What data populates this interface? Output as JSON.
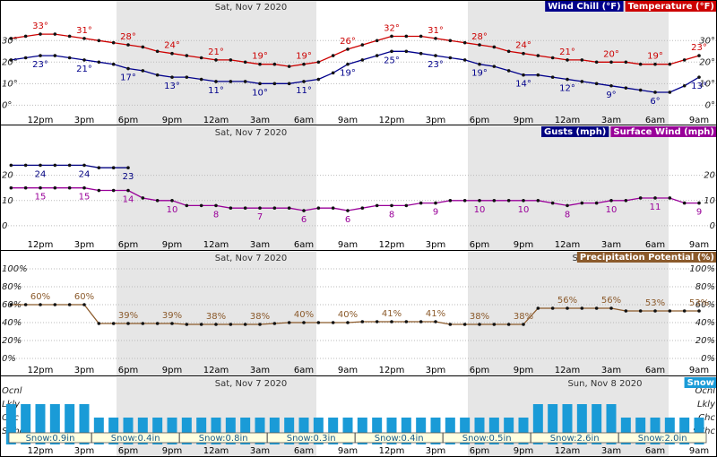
{
  "chart_data": [
    {
      "type": "line",
      "headers": [
        "Sat, Nov 7 2020"
      ],
      "categories": [
        null,
        null,
        "12pm",
        null,
        null,
        "3pm",
        null,
        null,
        "6pm",
        null,
        null,
        "9pm",
        null,
        null,
        "12am",
        null,
        null,
        "3am",
        null,
        null,
        "6am",
        null,
        null,
        "9am",
        null,
        null,
        "12pm",
        null,
        null,
        "3pm",
        null,
        null,
        "6pm",
        null,
        null,
        "9pm",
        null,
        null,
        "12am",
        null,
        null,
        "3am",
        null,
        null,
        "6am",
        null,
        null,
        "9am"
      ],
      "ylim": [
        -4,
        48
      ],
      "yticks": [
        {
          "value": 0,
          "label": "0°"
        },
        {
          "value": 10,
          "label": "10°"
        },
        {
          "value": 20,
          "label": "20°"
        },
        {
          "value": 30,
          "label": "30°"
        }
      ],
      "grid": true,
      "series": [
        {
          "name": "Wind Chill (°F)",
          "color": "#00008b",
          "values": [
            21,
            22,
            23,
            23,
            22,
            21,
            20,
            19,
            17,
            16,
            14,
            13,
            13,
            12,
            11,
            11,
            11,
            10,
            10,
            10,
            11,
            12,
            15,
            19,
            21,
            23,
            25,
            25,
            24,
            23,
            22,
            21,
            19,
            18,
            16,
            14,
            14,
            13,
            12,
            11,
            10,
            9,
            8,
            7,
            6,
            6,
            9,
            13
          ],
          "value_labels": [
            null,
            null,
            "23°",
            null,
            null,
            "21°",
            null,
            null,
            "17°",
            null,
            null,
            "13°",
            null,
            null,
            "11°",
            null,
            null,
            "10°",
            null,
            null,
            "11°",
            null,
            null,
            "19°",
            null,
            null,
            "25°",
            null,
            null,
            "23°",
            null,
            null,
            "19°",
            null,
            null,
            "14°",
            null,
            null,
            "12°",
            null,
            null,
            "9°",
            null,
            null,
            "6°",
            null,
            null,
            "13°"
          ]
        },
        {
          "name": "Temperature (°F)",
          "color": "#cc0000",
          "values": [
            31,
            32,
            33,
            33,
            32,
            31,
            30,
            29,
            28,
            27,
            25,
            24,
            23,
            22,
            21,
            21,
            20,
            19,
            19,
            18,
            19,
            20,
            23,
            26,
            28,
            30,
            32,
            32,
            32,
            31,
            30,
            29,
            28,
            27,
            25,
            24,
            23,
            22,
            21,
            21,
            20,
            20,
            20,
            19,
            19,
            19,
            21,
            23
          ],
          "value_labels": [
            null,
            null,
            "33°",
            null,
            null,
            "31°",
            null,
            null,
            "28°",
            null,
            null,
            "24°",
            null,
            null,
            "21°",
            null,
            null,
            "19°",
            null,
            null,
            "19°",
            null,
            null,
            "26°",
            null,
            null,
            "32°",
            null,
            null,
            "31°",
            null,
            null,
            "28°",
            null,
            null,
            "24°",
            null,
            null,
            "21°",
            null,
            null,
            "20°",
            null,
            null,
            "19°",
            null,
            null,
            "23°"
          ]
        }
      ]
    },
    {
      "type": "line",
      "headers": [
        "Sat, Nov 7 2020"
      ],
      "categories": [
        null,
        null,
        "12pm",
        null,
        null,
        "3pm",
        null,
        null,
        "6pm",
        null,
        null,
        "9pm",
        null,
        null,
        "12am",
        null,
        null,
        "3am",
        null,
        null,
        "6am",
        null,
        null,
        "9am",
        null,
        null,
        "12pm",
        null,
        null,
        "3pm",
        null,
        null,
        "6pm",
        null,
        null,
        "9pm",
        null,
        null,
        "12am",
        null,
        null,
        "3am",
        null,
        null,
        "6am",
        null,
        null,
        "9am"
      ],
      "ylim": [
        -5,
        38
      ],
      "yticks": [
        0,
        10,
        20
      ],
      "grid": true,
      "series": [
        {
          "name": "Gusts (mph)",
          "color": "#000080",
          "values": [
            24,
            24,
            24,
            24,
            24,
            24,
            23,
            23,
            23,
            null,
            null,
            null,
            null,
            null,
            null,
            null,
            null,
            null,
            null,
            null,
            null,
            null,
            null,
            null,
            null,
            null,
            null,
            null,
            null,
            null,
            null,
            null,
            null,
            null,
            null,
            null,
            null,
            null,
            null,
            null,
            null,
            null,
            null,
            null,
            null,
            null,
            null,
            null
          ]
        },
        {
          "name": "Surface Wind (mph)",
          "color": "#990099",
          "values": [
            15,
            15,
            15,
            15,
            15,
            15,
            14,
            14,
            14,
            11,
            10,
            10,
            8,
            8,
            8,
            7,
            7,
            7,
            7,
            7,
            6,
            7,
            7,
            6,
            7,
            8,
            8,
            8,
            9,
            9,
            10,
            10,
            10,
            10,
            10,
            10,
            10,
            9,
            8,
            9,
            9,
            10,
            10,
            11,
            11,
            11,
            9,
            9
          ]
        }
      ]
    },
    {
      "type": "line",
      "headers": [
        "Sat, Nov 7 2020",
        "Sun"
      ],
      "categories": [
        null,
        null,
        "12pm",
        null,
        null,
        "3pm",
        null,
        null,
        "6pm",
        null,
        null,
        "9pm",
        null,
        null,
        "12am",
        null,
        null,
        "3am",
        null,
        null,
        "6am",
        null,
        null,
        "9am",
        null,
        null,
        "12pm",
        null,
        null,
        "3pm",
        null,
        null,
        "6pm",
        null,
        null,
        "9pm",
        null,
        null,
        "12am",
        null,
        null,
        "3am",
        null,
        null,
        "6am",
        null,
        null,
        "9am"
      ],
      "ylim": [
        -8,
        118
      ],
      "yticks": [
        {
          "value": 0,
          "label": "0%"
        },
        {
          "value": 20,
          "label": "20%"
        },
        {
          "value": 40,
          "label": "40%"
        },
        {
          "value": 60,
          "label": "60%"
        },
        {
          "value": 80,
          "label": "80%"
        },
        {
          "value": 100,
          "label": "100%"
        }
      ],
      "grid": true,
      "series": [
        {
          "name": "Precipitation Potential (%)",
          "color": "#8b5a2b",
          "values": [
            60,
            60,
            60,
            60,
            60,
            60,
            39,
            39,
            39,
            39,
            39,
            39,
            38,
            38,
            38,
            38,
            38,
            38,
            39,
            40,
            40,
            40,
            40,
            40,
            41,
            41,
            41,
            41,
            41,
            41,
            38,
            38,
            38,
            38,
            38,
            38,
            56,
            56,
            56,
            56,
            56,
            56,
            53,
            53,
            53,
            53,
            53,
            53
          ],
          "value_labels": [
            null,
            null,
            "60%",
            null,
            null,
            "60%",
            null,
            null,
            "39%",
            null,
            null,
            "39%",
            null,
            null,
            "38%",
            null,
            null,
            "38%",
            null,
            null,
            "40%",
            null,
            null,
            "40%",
            null,
            null,
            "41%",
            null,
            null,
            "41%",
            null,
            null,
            "38%",
            null,
            null,
            "38%",
            null,
            null,
            "56%",
            null,
            null,
            "56%",
            null,
            null,
            "53%",
            null,
            null,
            "53%"
          ]
        }
      ]
    },
    {
      "type": "bar",
      "headers": [
        "Sat, Nov 7 2020",
        "Sun, Nov 8 2020"
      ],
      "categories": [
        null,
        null,
        "12pm",
        null,
        null,
        "3pm",
        null,
        null,
        "6pm",
        null,
        null,
        "9pm",
        null,
        null,
        "12am",
        null,
        null,
        "3am",
        null,
        null,
        "6am",
        null,
        null,
        "9am",
        null,
        null,
        "12pm",
        null,
        null,
        "3pm",
        null,
        null,
        "6pm",
        null,
        null,
        "9pm",
        null,
        null,
        "12am",
        null,
        null,
        "3am",
        null,
        null,
        "6am",
        null,
        null,
        "9am"
      ],
      "ylim": [
        0,
        100
      ],
      "yticks": [
        {
          "value": 80,
          "label": "Ocnl"
        },
        {
          "value": 60,
          "label": "Lkly"
        },
        {
          "value": 40,
          "label": "Chc"
        },
        {
          "value": 20,
          "label": "SChc"
        }
      ],
      "grid": false,
      "series": [
        {
          "name": "Snow",
          "color": "#1a9bd7",
          "values": [
            60,
            60,
            60,
            60,
            60,
            60,
            40,
            40,
            40,
            40,
            40,
            40,
            40,
            40,
            40,
            40,
            40,
            40,
            40,
            40,
            40,
            40,
            40,
            40,
            40,
            40,
            40,
            40,
            40,
            40,
            40,
            40,
            40,
            40,
            40,
            40,
            60,
            60,
            60,
            60,
            60,
            60,
            40,
            40,
            40,
            40,
            40,
            40
          ]
        }
      ],
      "snow_amounts": {
        "values": [
          0.9,
          0.4,
          0.8,
          0.3,
          0.4,
          0.5,
          2.6,
          2.0
        ],
        "value_labels": [
          "Snow:0.9in",
          "Snow:0.4in",
          "Snow:0.8in",
          "Snow:0.3in",
          "Snow:0.4in",
          "Snow:0.5in",
          "Snow:2.6in",
          "Snow:2.0in"
        ]
      }
    }
  ]
}
